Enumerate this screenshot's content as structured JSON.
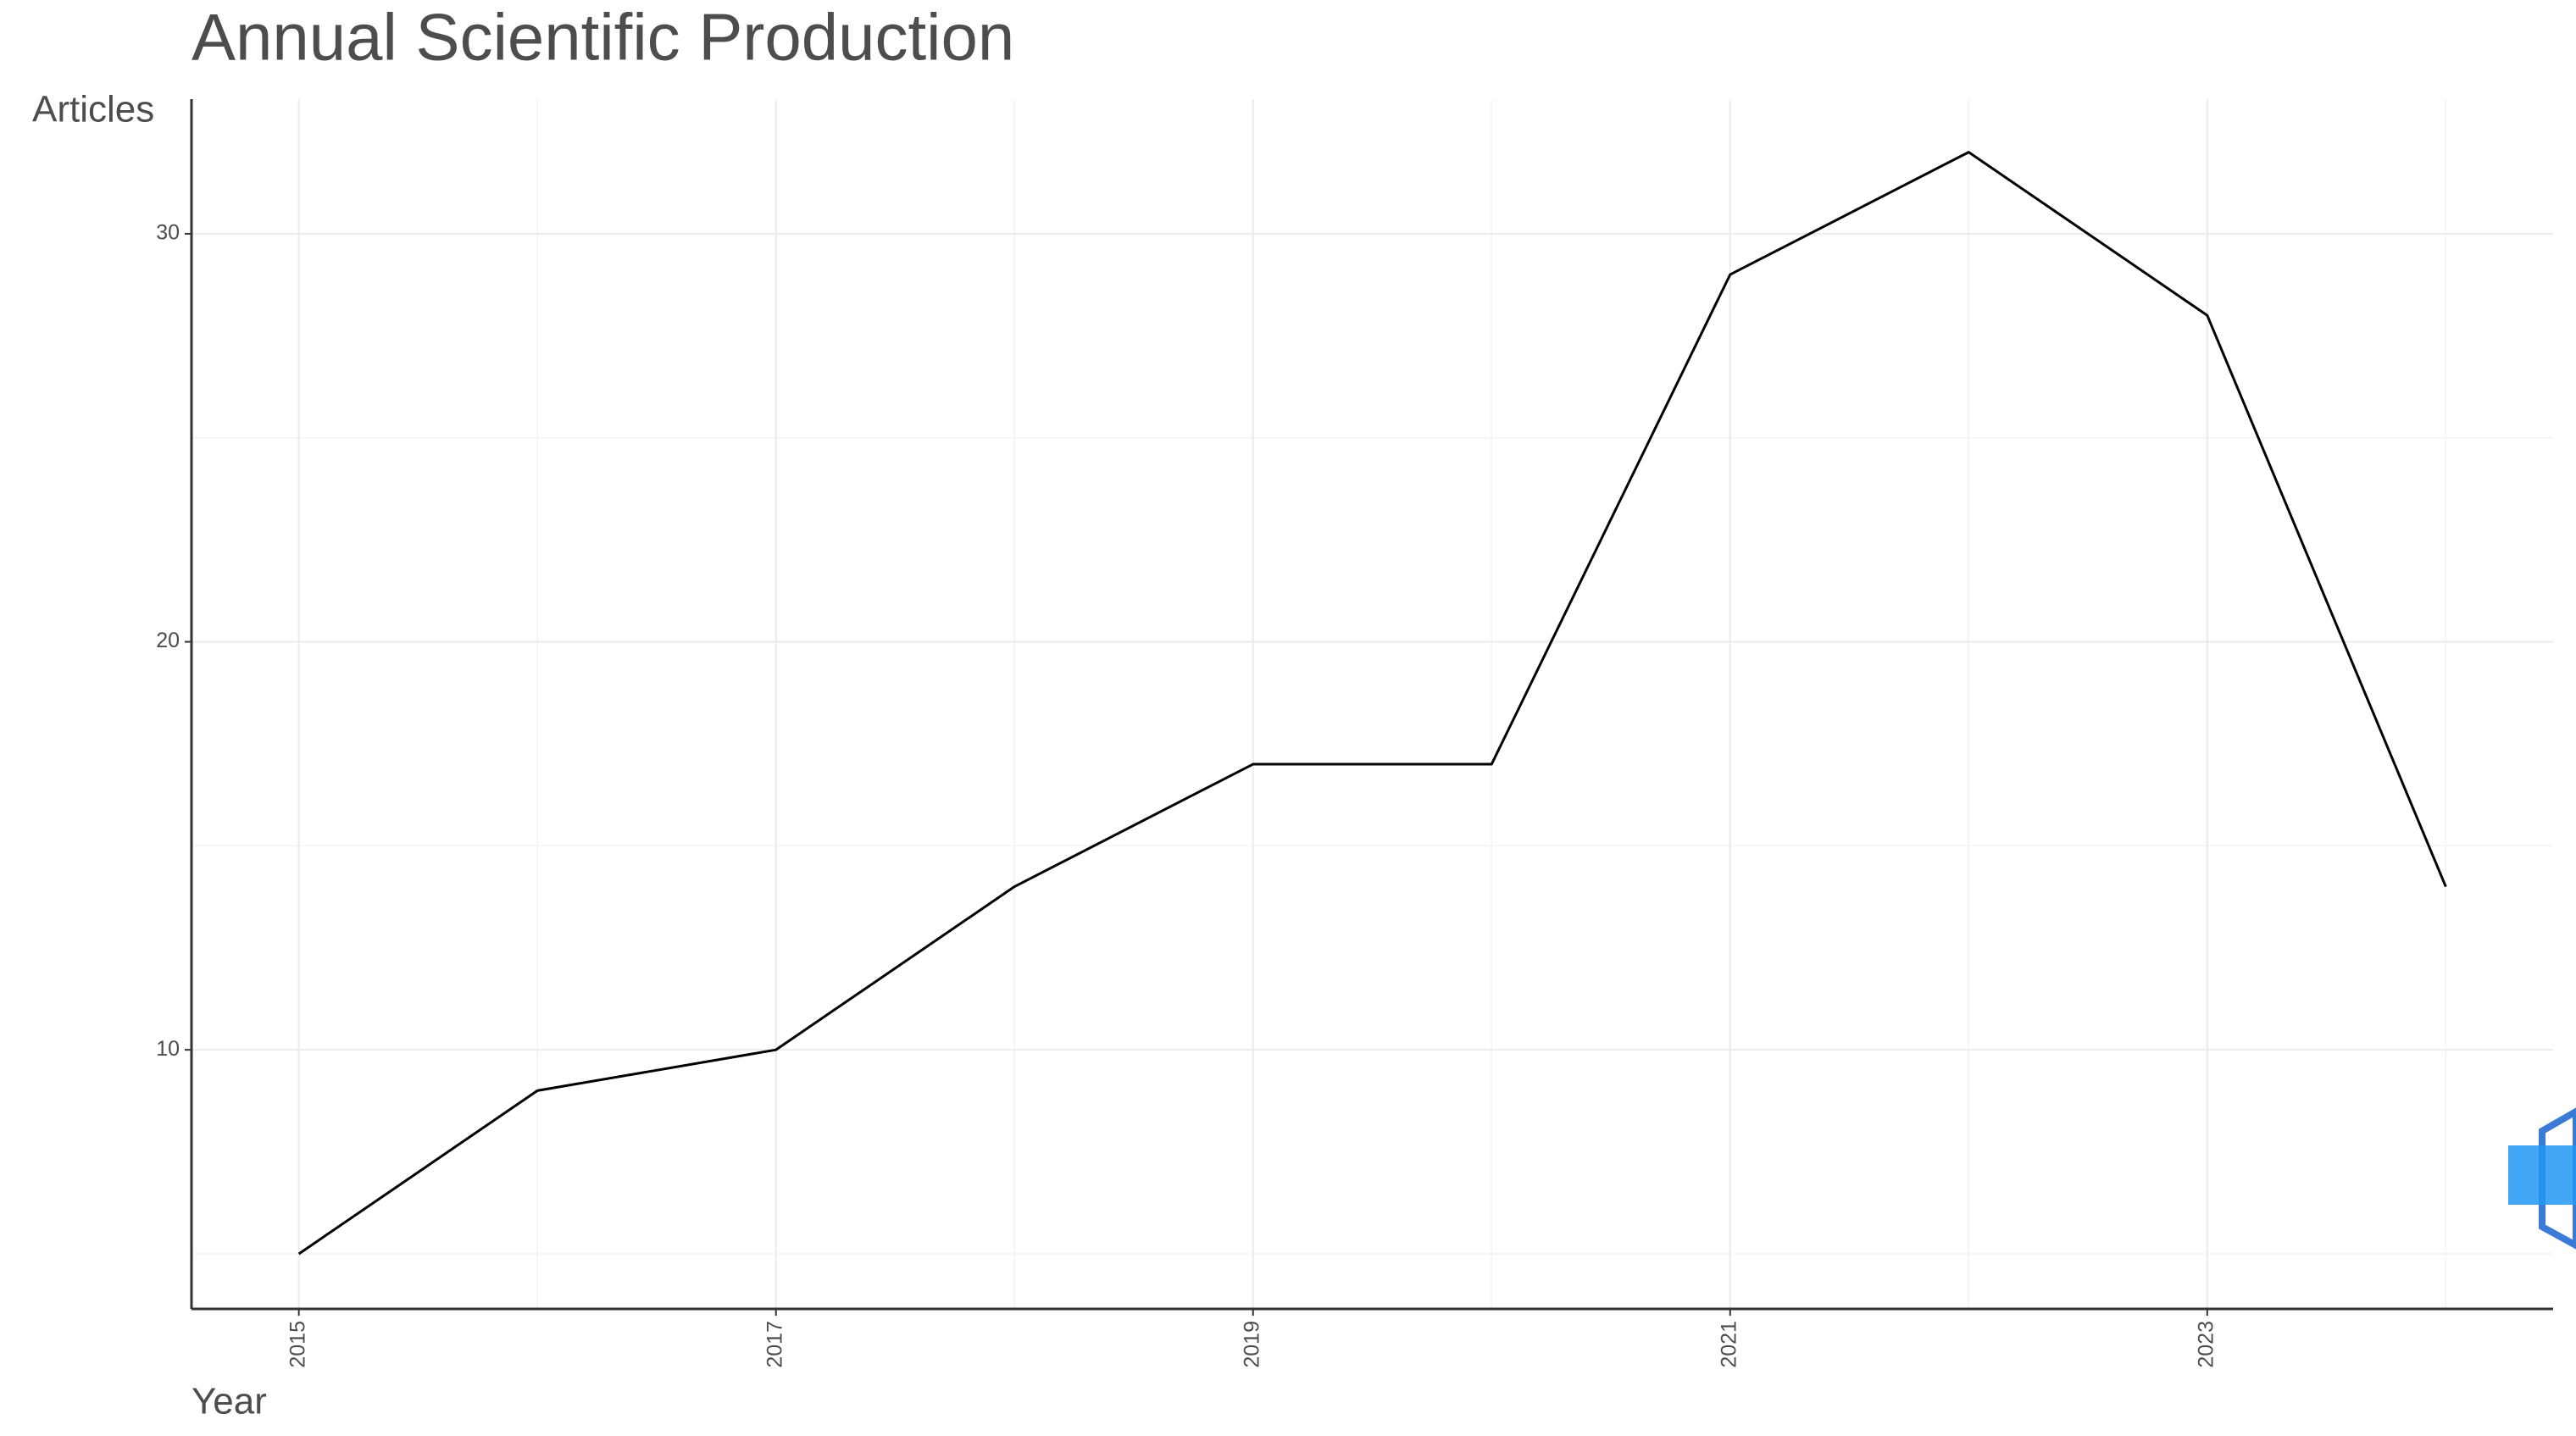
{
  "chart_data": {
    "type": "line",
    "title": "Annual Scientific Production",
    "x_label": "Year",
    "y_label": "Articles",
    "x": [
      2015,
      2016,
      2017,
      2018,
      2019,
      2020,
      2021,
      2022,
      2023,
      2024
    ],
    "series": [
      {
        "name": "Articles",
        "color": "#000000",
        "values": [
          5,
          9,
          10,
          14,
          17,
          17,
          29,
          32,
          28,
          14
        ]
      }
    ],
    "xlim": [
      2014.55,
      2024.45
    ],
    "xticks": [
      2015,
      2017,
      2019,
      2021,
      2023
    ],
    "x_minor_ticks": [
      2016,
      2018,
      2020,
      2022,
      2024
    ],
    "ylim": [
      3.65,
      33.3
    ],
    "yticks": [
      10,
      20,
      30
    ],
    "y_minor_ticks": [
      5,
      15,
      25
    ],
    "grid": true
  }
}
